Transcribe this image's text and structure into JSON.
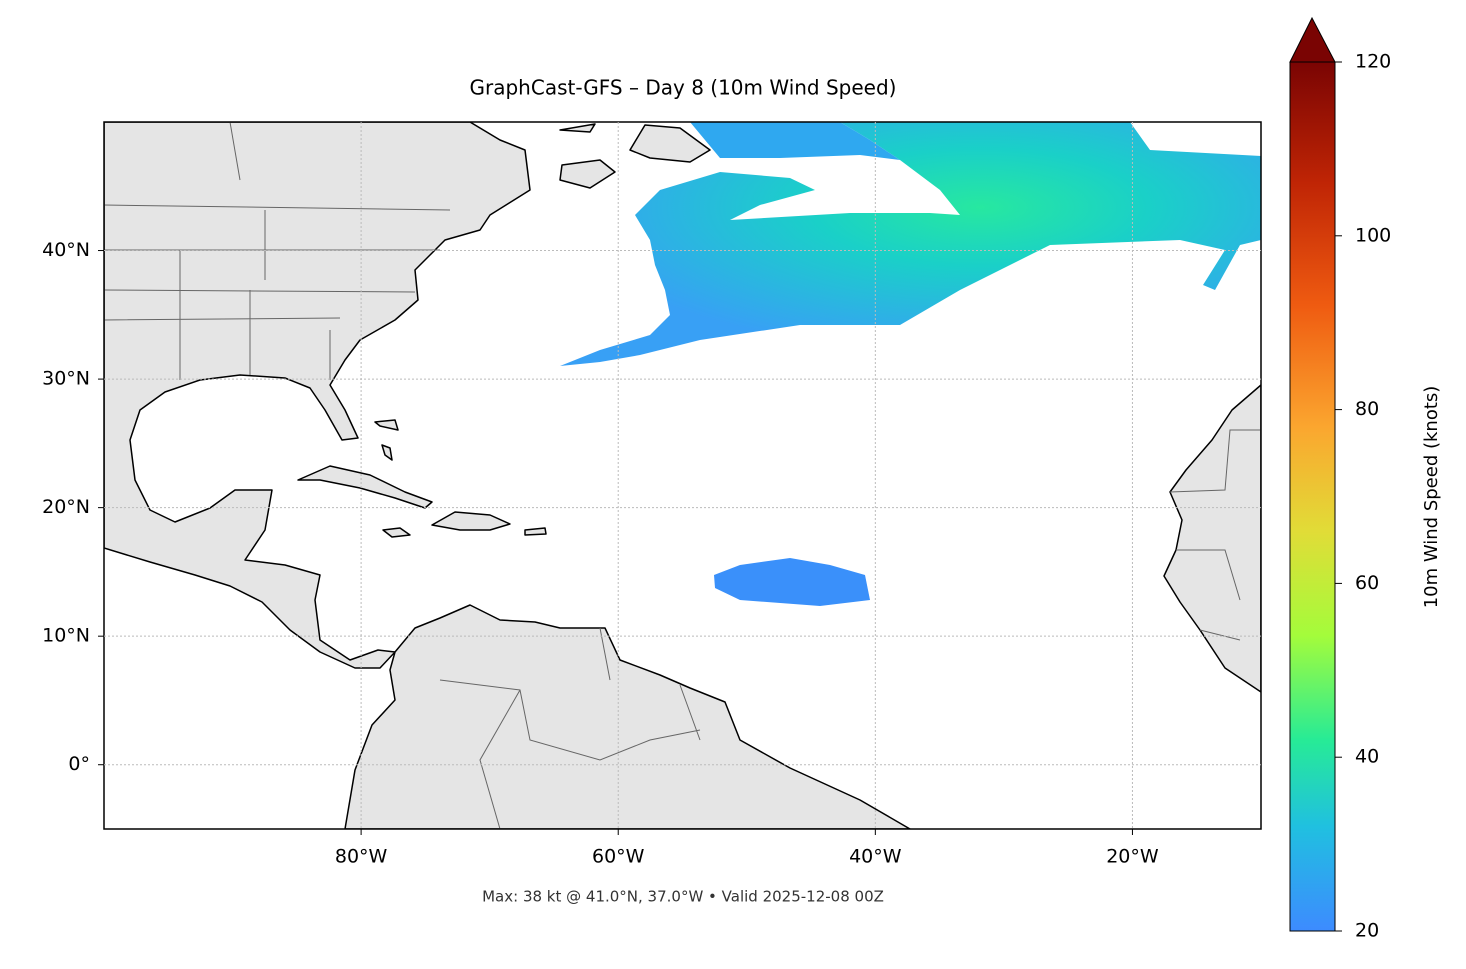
{
  "chart_data": {
    "type": "map",
    "title": "GraphCast-GFS – Day 8 (10m Wind Speed)",
    "xlim": [
      -100,
      -10
    ],
    "ylim": [
      -5,
      50
    ],
    "xticks": [
      {
        "value": -80,
        "label": "80°W"
      },
      {
        "value": -60,
        "label": "60°W"
      },
      {
        "value": -40,
        "label": "40°W"
      },
      {
        "value": -20,
        "label": "20°W"
      }
    ],
    "yticks": [
      {
        "value": 0,
        "label": "0°"
      },
      {
        "value": 10,
        "label": "10°N"
      },
      {
        "value": 20,
        "label": "20°N"
      },
      {
        "value": 30,
        "label": "30°N"
      },
      {
        "value": 40,
        "label": "40°N"
      }
    ],
    "grid": true,
    "colorbar": {
      "label": "10m Wind Speed (knots)",
      "lim": [
        20,
        120
      ],
      "ticks": [
        20,
        40,
        60,
        80,
        100,
        120
      ]
    },
    "footer": "Max: 38 kt @ 41.0°N, 37.0°W • Valid 2025-12-08 00Z"
  }
}
